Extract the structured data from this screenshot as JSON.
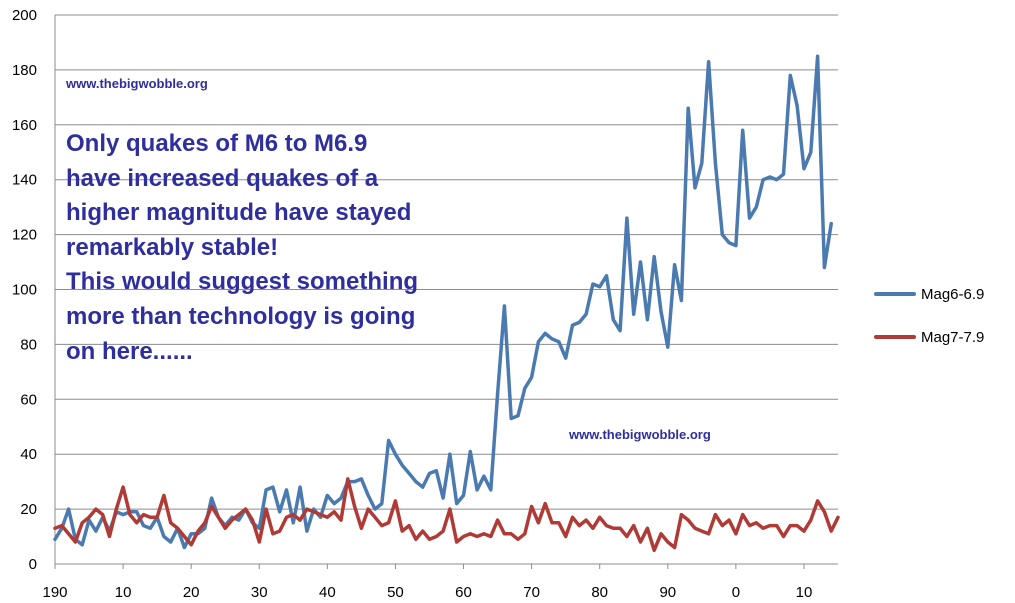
{
  "chart_data": {
    "type": "line",
    "title": "",
    "xlabel": "",
    "ylabel": "",
    "ylim": [
      0,
      200
    ],
    "yticks": [
      "0",
      "20",
      "40",
      "60",
      "80",
      "100",
      "120",
      "140",
      "160",
      "180",
      "200"
    ],
    "xticks": [
      "190",
      "10",
      "20",
      "30",
      "40",
      "50",
      "60",
      "70",
      "80",
      "90",
      "0",
      "10"
    ],
    "grid": true,
    "legend_position": "right",
    "series": [
      {
        "name": "Mag6-6.9",
        "color": "#4a7ab0",
        "values": [
          9,
          13,
          20,
          9,
          7,
          16,
          12,
          17,
          12,
          19,
          18,
          19,
          19,
          14,
          13,
          17,
          10,
          8,
          13,
          6,
          11,
          11,
          13,
          24,
          17,
          14,
          17,
          16,
          20,
          15,
          13,
          27,
          28,
          19,
          27,
          15,
          28,
          12,
          20,
          17,
          25,
          22,
          24,
          30,
          30,
          31,
          25,
          20,
          22,
          45,
          40,
          36,
          33,
          30,
          28,
          33,
          34,
          24,
          40,
          22,
          25,
          41,
          27,
          32,
          27,
          62,
          94,
          53,
          54,
          64,
          68,
          81,
          84,
          82,
          81,
          75,
          87,
          88,
          91,
          102,
          101,
          105,
          89,
          85,
          126,
          91,
          110,
          89,
          112,
          92,
          79,
          109,
          96,
          166,
          137,
          146,
          183,
          146,
          120,
          117,
          116,
          158,
          126,
          130,
          140,
          141,
          140,
          142,
          178,
          167,
          144,
          150,
          185,
          108,
          124
        ]
      },
      {
        "name": "Mag7-7.9",
        "color": "#b03a35",
        "values": [
          13,
          14,
          11,
          8,
          15,
          17,
          20,
          18,
          10,
          20,
          28,
          18,
          15,
          18,
          17,
          17,
          25,
          15,
          13,
          10,
          7,
          12,
          15,
          21,
          17,
          13,
          16,
          18,
          20,
          16,
          8,
          20,
          11,
          12,
          17,
          18,
          16,
          20,
          19,
          18,
          17,
          19,
          16,
          31,
          21,
          13,
          20,
          17,
          14,
          15,
          23,
          12,
          14,
          9,
          12,
          9,
          10,
          12,
          20,
          8,
          10,
          11,
          10,
          11,
          10,
          16,
          11,
          11,
          9,
          11,
          21,
          15,
          22,
          15,
          15,
          10,
          17,
          14,
          16,
          13,
          17,
          14,
          13,
          13,
          10,
          14,
          8,
          13,
          5,
          11,
          8,
          6,
          18,
          16,
          13,
          12,
          11,
          18,
          14,
          16,
          11,
          18,
          14,
          15,
          13,
          14,
          14,
          10,
          14,
          14,
          12,
          16,
          23,
          19,
          12,
          17
        ]
      }
    ]
  },
  "watermarks": [
    "www.thebigwobble.org",
    "www.thebigwobble.org"
  ],
  "annotation_lines": [
    "Only quakes of M6 to M6.9",
    "have increased quakes of a",
    "higher magnitude have stayed",
    "remarkably stable!",
    "This would suggest something",
    "more than technology is going",
    "on here......"
  ]
}
